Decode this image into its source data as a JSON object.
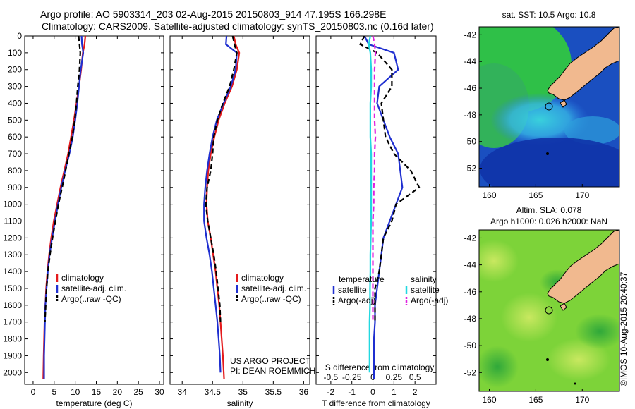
{
  "header": {
    "line1": "Argo profile: AO 5903314_203 02-Aug-2015 20150803_914 47.195S 166.298E",
    "line2": "Climatology: CARS2009. Satellite-adjusted climatology: synTS_20150803.nc (0.16d later)"
  },
  "maps": {
    "sst_title": "sat. SST: 10.5 Argo: 10.8",
    "sla_title1": "Altim. SLA: 0.078",
    "sla_title2": "Argo h1000: 0.026 h2000: NaN",
    "stamp": "©IMOS 10-Aug-2015 20:40:37",
    "lat_ticks": [
      "-42",
      "-44",
      "-46",
      "-48",
      "-50",
      "-52"
    ],
    "lon_ticks": [
      "160",
      "165",
      "170"
    ]
  },
  "annotations": {
    "project": "US ARGO PROJECT",
    "pi": "PI: DEAN ROEMMICH",
    "s_diff_label": "S difference from climatology"
  },
  "chart_data": [
    {
      "type": "line",
      "xlabel": "temperature (deg C)",
      "ylabel": "",
      "xlim": [
        -2,
        31
      ],
      "ylim": [
        2070,
        0
      ],
      "xticks": [
        0,
        5,
        10,
        15,
        20,
        25,
        30
      ],
      "yticks": [
        0,
        100,
        200,
        300,
        400,
        500,
        600,
        700,
        800,
        900,
        1000,
        1100,
        1200,
        1300,
        1400,
        1500,
        1600,
        1700,
        1800,
        1900,
        2000
      ],
      "legend": [
        "climatology",
        "satellite-adj. clim.",
        "Argo(..raw -QC)"
      ],
      "series": [
        {
          "name": "climatology",
          "color": "#e41a1c",
          "x": [
            12.4,
            12.2,
            11.8,
            11.4,
            10.9,
            10.3,
            9.7,
            9.0,
            8.3,
            7.4,
            6.5,
            5.7,
            4.9,
            4.3,
            3.8,
            3.4,
            3.1,
            2.9,
            2.7,
            2.6,
            2.5,
            2.4
          ],
          "y": [
            0,
            50,
            100,
            200,
            300,
            400,
            500,
            600,
            700,
            800,
            900,
            1000,
            1100,
            1200,
            1300,
            1400,
            1500,
            1600,
            1700,
            1800,
            1900,
            2040
          ]
        },
        {
          "name": "satellite-adj. clim.",
          "color": "#1f2fd0",
          "x": [
            11.5,
            11.6,
            11.9,
            11.3,
            10.9,
            10.5,
            10.0,
            9.4,
            8.6,
            7.6,
            6.7,
            5.9,
            5.2,
            4.5,
            3.9,
            3.5,
            3.2,
            2.9,
            2.8,
            2.7,
            2.6,
            2.6
          ],
          "y": [
            0,
            50,
            100,
            200,
            300,
            400,
            500,
            600,
            700,
            800,
            900,
            1000,
            1100,
            1200,
            1300,
            1400,
            1500,
            1600,
            1700,
            1800,
            1900,
            2040
          ]
        },
        {
          "name": "Argo(..raw -QC)",
          "color": "#000000",
          "dash": true,
          "x": [
            10.8,
            11.0,
            11.2,
            11.0,
            10.6,
            10.3,
            9.9,
            9.3,
            8.5,
            7.7,
            6.9,
            6.0,
            5.3,
            4.6,
            4.0,
            3.5,
            3.2,
            3.0,
            2.8
          ],
          "y": [
            0,
            50,
            100,
            200,
            300,
            400,
            500,
            600,
            700,
            800,
            900,
            1000,
            1100,
            1200,
            1300,
            1400,
            1500,
            1600,
            1700
          ]
        }
      ]
    },
    {
      "type": "line",
      "xlabel": "salinity",
      "ylabel": "",
      "xlim": [
        33.8,
        36.1
      ],
      "ylim": [
        2070,
        0
      ],
      "xticks": [
        34,
        34.5,
        35,
        35.5,
        36
      ],
      "legend": [
        "climatology",
        "satellite-adj. clim.",
        "Argo(..raw -QC)"
      ],
      "series": [
        {
          "name": "climatology",
          "color": "#e41a1c",
          "x": [
            34.85,
            34.88,
            34.94,
            34.9,
            34.82,
            34.7,
            34.6,
            34.53,
            34.47,
            34.43,
            34.41,
            34.4,
            34.42,
            34.47,
            34.51,
            34.55,
            34.58,
            34.61,
            34.63,
            34.65,
            34.67,
            34.69
          ],
          "y": [
            0,
            50,
            100,
            200,
            300,
            400,
            500,
            600,
            700,
            800,
            900,
            1000,
            1100,
            1200,
            1300,
            1400,
            1500,
            1600,
            1700,
            1800,
            1900,
            2040
          ]
        },
        {
          "name": "satellite-adj. clim.",
          "color": "#1f2fd0",
          "x": [
            34.73,
            34.72,
            34.9,
            34.88,
            34.8,
            34.68,
            34.57,
            34.5,
            34.45,
            34.41,
            34.38,
            34.36,
            34.36,
            34.4,
            34.45,
            34.49,
            34.52,
            34.55,
            34.58,
            34.6,
            34.62,
            34.63
          ],
          "y": [
            0,
            50,
            100,
            200,
            300,
            400,
            500,
            600,
            700,
            800,
            900,
            1000,
            1100,
            1200,
            1300,
            1400,
            1500,
            1600,
            1700,
            1800,
            1900,
            2000
          ]
        },
        {
          "name": "Argo(..raw -QC)",
          "color": "#000000",
          "dash": true,
          "x": [
            34.83,
            34.86,
            34.9,
            34.85,
            34.78,
            34.67,
            34.58,
            34.52,
            34.5,
            34.47,
            34.41,
            34.39,
            34.42,
            34.47,
            34.52,
            34.56,
            34.59,
            34.62,
            34.63
          ],
          "y": [
            0,
            50,
            100,
            200,
            300,
            400,
            500,
            600,
            700,
            800,
            900,
            1000,
            1100,
            1200,
            1300,
            1400,
            1500,
            1600,
            1700
          ]
        }
      ]
    },
    {
      "type": "line",
      "xlabel": "T difference from climatology",
      "ylabel": "",
      "xlim": [
        -2.7,
        3.0
      ],
      "ylim": [
        2070,
        0
      ],
      "xticks": [
        -2,
        -1,
        0,
        1,
        2
      ],
      "secondary_xlabel": "S difference from climatology",
      "secondary_xlim": [
        -0.675,
        0.75
      ],
      "secondary_xticks": [
        -0.5,
        -0.25,
        0,
        0.25,
        0.5
      ],
      "legend_headers": [
        "temperature",
        "salinity"
      ],
      "legend": [
        "satellite",
        "Argo(-adj)",
        "satellite",
        "Argo(-adj)"
      ],
      "series": [
        {
          "name": "satellite",
          "group": "temperature",
          "color": "#1f2fd0",
          "x": [
            -0.4,
            -0.2,
            1.0,
            1.2,
            0.3,
            0.2,
            0.5,
            0.8,
            1.2,
            1.3,
            1.4,
            1.1,
            0.8,
            0.5,
            0.4,
            0.3,
            0.2,
            0.1,
            0.1,
            0.05,
            0.05,
            0.05
          ],
          "y": [
            0,
            50,
            100,
            200,
            300,
            400,
            500,
            600,
            700,
            800,
            900,
            1000,
            1100,
            1200,
            1300,
            1400,
            1500,
            1600,
            1700,
            1800,
            1900,
            2040
          ]
        },
        {
          "name": "Argo(-adj)",
          "group": "temperature",
          "color": "#000000",
          "dash": true,
          "x": [
            -0.4,
            -0.6,
            0.2,
            0.9,
            0.9,
            0.4,
            0.5,
            0.6,
            1.0,
            1.8,
            2.2,
            1.1,
            0.9,
            0.5,
            0.4,
            0.3,
            0.1,
            0.1,
            0.1
          ],
          "y": [
            0,
            50,
            100,
            200,
            300,
            400,
            500,
            600,
            700,
            800,
            900,
            1000,
            1100,
            1200,
            1300,
            1400,
            1500,
            1600,
            1700
          ]
        },
        {
          "name": "satellite",
          "group": "salinity",
          "color": "#22d8e0",
          "s": [
            -0.03,
            -0.05,
            -0.03,
            -0.02,
            -0.02,
            -0.03,
            -0.03,
            -0.03,
            -0.02,
            -0.02,
            -0.02,
            -0.02,
            -0.02,
            -0.025,
            -0.03,
            -0.03,
            -0.035,
            -0.035,
            -0.04,
            -0.04,
            -0.04,
            -0.04
          ],
          "y": [
            0,
            50,
            100,
            200,
            300,
            400,
            500,
            600,
            700,
            800,
            900,
            1000,
            1100,
            1200,
            1300,
            1400,
            1500,
            1600,
            1700,
            1800,
            1900,
            2000
          ]
        },
        {
          "name": "Argo(-adj)",
          "group": "salinity",
          "color": "#e020e0",
          "dash": true,
          "s": [
            0.0,
            0.02,
            0.03,
            0.02,
            0.02,
            0.02,
            0.02,
            0.03,
            0.02,
            0.02,
            0.01,
            0.01,
            0.0,
            0.0,
            0.0,
            0.0,
            0.0,
            0.0,
            0.0
          ],
          "y": [
            0,
            50,
            100,
            200,
            300,
            400,
            500,
            600,
            700,
            800,
            900,
            1000,
            1100,
            1200,
            1300,
            1400,
            1500,
            1600,
            1700
          ]
        }
      ]
    }
  ]
}
